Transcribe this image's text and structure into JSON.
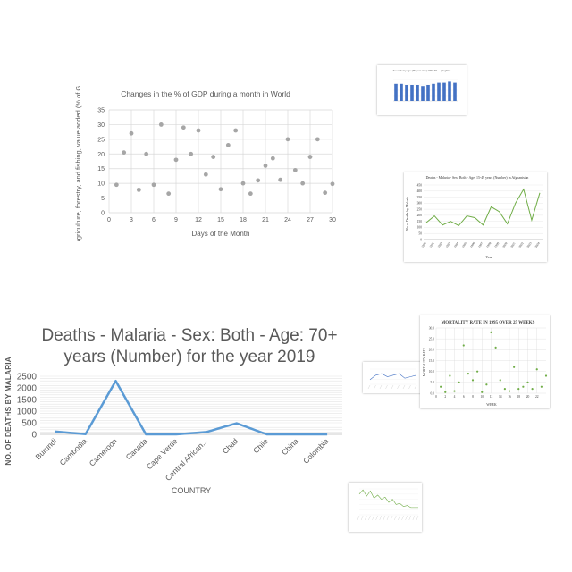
{
  "chart_data": [
    {
      "type": "scatter",
      "title": "Changes in the % of GDP during a month in World",
      "xlabel": "Days of the Month",
      "ylabel": "Agriculture, forestry, and fishing, value added (% of GDP)",
      "xlim": [
        0,
        30
      ],
      "ylim": [
        0,
        35
      ],
      "xticks": [
        0,
        3,
        6,
        9,
        12,
        15,
        18,
        21,
        24,
        27,
        30
      ],
      "yticks": [
        0,
        5,
        10,
        15,
        20,
        25,
        30,
        35
      ],
      "grid": true,
      "color": "#a6a6a6",
      "x": [
        1,
        2,
        3,
        4,
        5,
        6,
        7,
        8,
        9,
        10,
        11,
        12,
        13,
        14,
        15,
        16,
        17,
        18,
        19,
        20,
        21,
        22,
        23,
        24,
        25,
        26,
        27,
        28,
        29,
        30
      ],
      "y": [
        9.5,
        20.5,
        27,
        7.8,
        20,
        9.5,
        30,
        6.5,
        18,
        29,
        20,
        28,
        13,
        19,
        8,
        23,
        28,
        10,
        6.5,
        11,
        16,
        18.5,
        11.2,
        25,
        14.5,
        10,
        19,
        25,
        6.8,
        9.8
      ]
    },
    {
      "type": "bar",
      "title": "Sex ratio by age (75 year olds) 1990-TS ... (illegible)",
      "subtitle": "",
      "ylabel": "",
      "xlabel": "",
      "color": "#4472c4",
      "categories": [
        "",
        "",
        "",
        "",
        "",
        "",
        "",
        "",
        "",
        "",
        "",
        ""
      ],
      "values": [
        8,
        8,
        7.5,
        7.5,
        7.5,
        7,
        7.5,
        8,
        8.5,
        8.5,
        9,
        8.5
      ],
      "ylim": [
        0,
        10
      ]
    },
    {
      "type": "line",
      "title": "Deaths - Malaria - Sex: Both - Age: 15-49 years (Number) in Afghanistan",
      "xlabel": "Year",
      "ylabel": "No of Deaths by Malaria",
      "ylim": [
        0,
        450
      ],
      "yticks": [
        0,
        50,
        100,
        150,
        200,
        250,
        300,
        350,
        400,
        450
      ],
      "color": "#70ad47",
      "x": [
        "1990",
        "1991",
        "1992",
        "1993",
        "1994",
        "1995",
        "1996",
        "1997",
        "1998",
        "1999",
        "2000",
        "2001",
        "2002",
        "2003",
        "2004"
      ],
      "y": [
        140,
        195,
        120,
        150,
        115,
        195,
        180,
        120,
        270,
        230,
        130,
        300,
        415,
        160,
        385
      ]
    },
    {
      "type": "line",
      "title": "Deaths - Malaria - Sex: Both - Age: 70+ years (Number) for the year 2019",
      "xlabel": "COUNTRY",
      "ylabel": "NO. OF DEATHS BY MALARIA",
      "ylim": [
        0,
        2500
      ],
      "yticks": [
        0,
        500,
        1000,
        1500,
        2000,
        2500
      ],
      "grid": true,
      "color": "#5b9bd5",
      "categories": [
        "Burundi",
        "Cambodia",
        "Cameroon",
        "Canada",
        "Cape Verde",
        "Central African...",
        "Chad",
        "Chile",
        "China",
        "Colombia"
      ],
      "values": [
        120,
        10,
        2300,
        0,
        0,
        100,
        480,
        0,
        0,
        0
      ]
    },
    {
      "type": "line",
      "title": "(illegible)",
      "xlabel": "",
      "ylabel": "",
      "color": "#4472c4",
      "categories": [
        "",
        "",
        "",
        "",
        "",
        "",
        "",
        "",
        ""
      ],
      "values": [
        3,
        6,
        7,
        5,
        6,
        7,
        4,
        5,
        6
      ],
      "ylim": [
        0,
        10
      ]
    },
    {
      "type": "scatter",
      "title": "MORTALITY RATE IN 1995 OVER 25 WEEKS",
      "xlabel": "WEEK",
      "ylabel": "MORTALITY RATE",
      "xlim": [
        0,
        24
      ],
      "ylim": [
        0,
        30
      ],
      "xticks": [
        0,
        2,
        4,
        6,
        8,
        10,
        12,
        14,
        16,
        18,
        20,
        22
      ],
      "yticks": [
        0,
        5,
        10,
        15,
        20,
        25,
        30
      ],
      "grid": true,
      "color": "#70ad47",
      "x": [
        1,
        2,
        3,
        4,
        5,
        6,
        7,
        8,
        9,
        10,
        11,
        12,
        13,
        14,
        15,
        16,
        17,
        18,
        19,
        20,
        21,
        22,
        23,
        24
      ],
      "y": [
        3,
        0.5,
        8,
        1,
        5,
        22,
        9,
        6,
        10,
        0.5,
        4,
        28,
        21,
        6,
        2,
        1,
        12,
        2,
        3,
        5,
        2,
        11,
        3,
        8
      ]
    },
    {
      "type": "line",
      "title": "(illegible)",
      "xlabel": "",
      "ylabel": "",
      "color": "#70ad47",
      "categories": [
        "",
        "",
        "",
        "",
        "",
        "",
        "",
        "",
        "",
        "",
        "",
        "",
        "",
        "",
        "",
        "",
        ""
      ],
      "values": [
        2000,
        2400,
        1800,
        2300,
        1600,
        1900,
        1500,
        1700,
        1200,
        1500,
        1000,
        1100,
        800,
        900,
        700,
        700,
        700
      ],
      "ylim": [
        0,
        2500
      ]
    }
  ]
}
